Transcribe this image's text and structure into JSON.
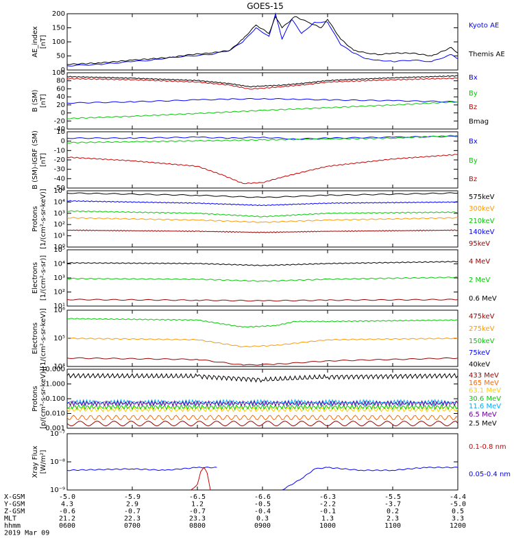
{
  "chart_data": {
    "type": "line",
    "title": "GOES-15",
    "x_ticks": [
      "0600",
      "0700",
      "0800",
      "0900",
      "1000",
      "1100",
      "1200"
    ],
    "xlim": [
      6,
      12
    ],
    "panels": [
      {
        "id": "ae",
        "ylabel": [
          "AE_index",
          "[nT]"
        ],
        "scale": "linear",
        "ylim": [
          0,
          200
        ],
        "tick_labels": [
          "0",
          "50",
          "100",
          "150",
          "200"
        ],
        "series": [
          {
            "name": "Kyoto AE",
            "color": "#0000ff",
            "x": [
              6.0,
              6.5,
              7.0,
              7.3,
              7.6,
              7.9,
              8.2,
              8.5,
              8.7,
              8.9,
              9.1,
              9.2,
              9.3,
              9.45,
              9.6,
              9.8,
              10.0,
              10.2,
              10.4,
              10.6,
              10.8,
              11.0,
              11.3,
              11.6,
              11.9,
              12.0
            ],
            "y": [
              15,
              20,
              30,
              35,
              45,
              50,
              55,
              70,
              100,
              150,
              120,
              200,
              110,
              180,
              130,
              170,
              170,
              90,
              60,
              40,
              35,
              30,
              35,
              30,
              55,
              40
            ]
          },
          {
            "name": "Themis AE",
            "color": "#000000",
            "x": [
              6.0,
              6.5,
              7.0,
              7.3,
              7.6,
              7.9,
              8.2,
              8.5,
              8.7,
              8.9,
              9.1,
              9.2,
              9.3,
              9.5,
              9.7,
              9.9,
              10.0,
              10.2,
              10.4,
              10.6,
              10.8,
              11.0,
              11.3,
              11.6,
              11.9,
              12.0
            ],
            "y": [
              20,
              25,
              35,
              40,
              45,
              55,
              60,
              70,
              110,
              160,
              130,
              190,
              150,
              190,
              170,
              150,
              180,
              110,
              70,
              60,
              55,
              60,
              60,
              50,
              80,
              60
            ]
          }
        ]
      },
      {
        "id": "b",
        "ylabel": [
          "B (SM)",
          "[nT]"
        ],
        "scale": "linear",
        "ylim": [
          -45,
          100
        ],
        "tick_labels": [
          "-40",
          "-20",
          "0",
          "20",
          "40",
          "60",
          "80",
          "100"
        ],
        "series": [
          {
            "name": "Bx",
            "color": "#0000ff",
            "x": [
              6,
              7,
              8,
              8.5,
              9,
              9.5,
              10,
              11,
              12
            ],
            "y": [
              22,
              25,
              30,
              32,
              33,
              32,
              30,
              28,
              25
            ]
          },
          {
            "name": "By",
            "color": "#00cc00",
            "x": [
              6,
              7,
              8,
              9,
              10,
              11,
              12
            ],
            "y": [
              -18,
              -12,
              -5,
              3,
              10,
              17,
              25
            ]
          },
          {
            "name": "Bz",
            "color": "#cc0000",
            "x": [
              6,
              7,
              8,
              8.5,
              8.8,
              9.0,
              9.3,
              9.7,
              10,
              11,
              12
            ],
            "y": [
              85,
              82,
              76,
              68,
              58,
              60,
              64,
              70,
              76,
              82,
              86
            ]
          },
          {
            "name": "Bmag",
            "color": "#000000",
            "x": [
              6,
              7,
              8,
              8.5,
              8.8,
              9.0,
              9.3,
              9.7,
              10,
              11,
              12
            ],
            "y": [
              90,
              86,
              80,
              72,
              64,
              66,
              68,
              74,
              80,
              87,
              92
            ]
          }
        ]
      },
      {
        "id": "dbg",
        "ylabel": [
          "B (SM)-IGRF (SM)",
          "[nT]"
        ],
        "scale": "linear",
        "ylim": [
          -52,
          10
        ],
        "tick_labels": [
          "-50",
          "-40",
          "-30",
          "-20",
          "-10",
          "0",
          "10"
        ],
        "series": [
          {
            "name": "Bx",
            "color": "#0000ff",
            "x": [
              6,
              7,
              8,
              8.5,
              9,
              9.5,
              10,
              11,
              12
            ],
            "y": [
              3,
              3,
              4,
              3,
              4,
              2,
              3,
              4,
              5
            ]
          },
          {
            "name": "By",
            "color": "#00cc00",
            "x": [
              6,
              7,
              8,
              9,
              10,
              11,
              12
            ],
            "y": [
              -2,
              -1,
              0,
              1,
              2,
              3,
              6
            ]
          },
          {
            "name": "Bz",
            "color": "#cc0000",
            "x": [
              6,
              7,
              8,
              8.4,
              8.7,
              9.0,
              9.3,
              9.7,
              10,
              11,
              12
            ],
            "y": [
              -18,
              -22,
              -28,
              -38,
              -47,
              -46,
              -40,
              -33,
              -28,
              -20,
              -15
            ]
          }
        ]
      },
      {
        "id": "protons",
        "ylabel": [
          "Protons",
          "[1/(cm²-s-sr-keV)]"
        ],
        "scale": "log",
        "ylim": [
          0,
          5
        ],
        "tick_labels": [
          "10⁰",
          "10¹",
          "10²",
          "10³",
          "10⁴",
          "10⁵"
        ],
        "series": [
          {
            "name": "575keV",
            "color": "#000000",
            "x": [
              6,
              8,
              9,
              10,
              12
            ],
            "y": [
              4.8,
              4.6,
              4.4,
              4.6,
              4.8
            ]
          },
          {
            "name": "300keV",
            "color": "#ff9900",
            "x": [
              6,
              8,
              9,
              10,
              12
            ],
            "y": [
              2.6,
              2.4,
              2.2,
              2.4,
              2.6
            ]
          },
          {
            "name": "210keV",
            "color": "#00cc00",
            "x": [
              6,
              8,
              9,
              10,
              12
            ],
            "y": [
              3.2,
              3.0,
              2.7,
              3.0,
              3.1
            ]
          },
          {
            "name": "140keV",
            "color": "#0000ff",
            "x": [
              6,
              8,
              9,
              10,
              12
            ],
            "y": [
              4.1,
              3.9,
              3.7,
              3.9,
              4.0
            ]
          },
          {
            "name": "95keV",
            "color": "#990000",
            "x": [
              6,
              8,
              9,
              10,
              12
            ],
            "y": [
              1.5,
              1.4,
              1.3,
              1.4,
              1.5
            ]
          }
        ]
      },
      {
        "id": "electrons1",
        "ylabel": [
          "Electrons",
          "[1/(cm²-s-sr)]"
        ],
        "scale": "log",
        "ylim": [
          0.7,
          5
        ],
        "tick_labels": [
          "10¹",
          "10²",
          "10³",
          "10⁴",
          "10⁵"
        ],
        "series": [
          {
            "name": "4 MeV",
            "color": "#990000",
            "x": [
              6,
              8,
              9,
              10,
              12
            ],
            "y": [
              1.2,
              1.15,
              1.1,
              1.15,
              1.2
            ]
          },
          {
            "name": "2 MeV",
            "color": "#00cc00",
            "x": [
              6,
              8,
              9,
              10,
              12
            ],
            "y": [
              2.8,
              2.75,
              2.6,
              2.75,
              2.9
            ]
          },
          {
            "name": "0.6 MeV",
            "color": "#000000",
            "x": [
              6,
              8,
              9,
              10,
              12
            ],
            "y": [
              4.0,
              3.95,
              3.8,
              3.95,
              4.1
            ]
          }
        ]
      },
      {
        "id": "electrons2",
        "ylabel": [
          "Electrons",
          "[1/(cm²-s-sr-keV)]"
        ],
        "scale": "log",
        "ylim": [
          4,
          6
        ],
        "tick_labels": [
          "10⁴",
          "10⁵",
          "10⁶"
        ],
        "series": [
          {
            "name": "475keV",
            "color": "#990000",
            "x": [
              6,
              8,
              8.7,
              9.2,
              10,
              12
            ],
            "y": [
              4.3,
              4.25,
              4.05,
              4.08,
              4.2,
              4.3
            ]
          },
          {
            "name": "275keV",
            "color": "#ff9900",
            "x": [
              6,
              8,
              8.7,
              9.2,
              10,
              12
            ],
            "y": [
              5.0,
              4.95,
              4.7,
              4.75,
              4.95,
              5.0
            ]
          },
          {
            "name": "150keV",
            "color": "#00cc00",
            "x": [
              6,
              8,
              8.7,
              9.2,
              9.5,
              10,
              12
            ],
            "y": [
              5.7,
              5.65,
              5.4,
              5.45,
              5.6,
              5.6,
              5.65
            ]
          },
          {
            "name": "75keV",
            "color": "#0000ff",
            "x": [],
            "y": []
          },
          {
            "name": "40keV",
            "color": "#000000",
            "x": [],
            "y": []
          }
        ]
      },
      {
        "id": "protons_hi",
        "ylabel": [
          "Protons",
          "[p/(cm²-s-sr-keV)]"
        ],
        "scale": "log",
        "ylim": [
          -3.2,
          1.8
        ],
        "tick_labels": [
          "0.001",
          "0.010",
          "0.100",
          "1.000",
          "10.000"
        ],
        "series": [
          {
            "name": "433 MeV",
            "color": "#990000",
            "x": [
              6,
              12
            ],
            "y": [
              -2.8,
              -2.8
            ]
          },
          {
            "name": "165 MeV",
            "color": "#ff6600",
            "x": [
              6,
              12
            ],
            "y": [
              -2.3,
              -2.3
            ]
          },
          {
            "name": "63.1 MeV",
            "color": "#ffcc00",
            "x": [
              6,
              12
            ],
            "y": [
              -1.6,
              -1.6
            ]
          },
          {
            "name": "30.6 MeV",
            "color": "#00cc00",
            "x": [
              6,
              12
            ],
            "y": [
              -1.4,
              -1.4
            ]
          },
          {
            "name": "11.6 MeV",
            "color": "#00aaff",
            "x": [
              6,
              12
            ],
            "y": [
              -1.0,
              -1.0
            ]
          },
          {
            "name": "6.5 MeV",
            "color": "#660099",
            "x": [
              6,
              12
            ],
            "y": [
              -1.1,
              -1.1
            ]
          },
          {
            "name": "2.5 MeV",
            "color": "#000000",
            "x": [
              6,
              8,
              9,
              10,
              12
            ],
            "y": [
              1.25,
              1.2,
              0.9,
              1.15,
              1.25
            ]
          }
        ]
      },
      {
        "id": "xray",
        "ylabel": [
          "Xray Flux",
          "[W/m²]"
        ],
        "scale": "log",
        "ylim": [
          -9,
          -7
        ],
        "tick_labels": [
          "10⁻⁹",
          "10⁻⁸",
          "10⁻⁷"
        ],
        "series": [
          {
            "name": "0.1-0.8 nm",
            "color": "#cc0000",
            "x": [
              7.9,
              8.0,
              8.05,
              8.1,
              8.15,
              8.2
            ],
            "y": [
              -9,
              -8.8,
              -8.35,
              -8.2,
              -8.4,
              -9
            ]
          },
          {
            "name": "0.05-0.4 nm",
            "color": "#0000ff",
            "x": [
              6.0,
              7.0,
              7.5,
              8.0,
              8.3,
              8.31,
              9.3,
              9.6,
              9.8,
              10.0,
              10.5,
              11.0,
              11.5,
              12.0
            ],
            "y": [
              -8.3,
              -8.25,
              -8.3,
              -8.2,
              -8.2,
              null,
              -9,
              -8.6,
              -8.25,
              -8.2,
              -8.3,
              -8.3,
              -8.2,
              -8.2
            ]
          }
        ]
      }
    ]
  },
  "footer": {
    "rows": [
      {
        "label": "X-GSM",
        "values": [
          "-5.0",
          "-5.9",
          "-6.5",
          "-6.6",
          "-6.3",
          "-5.5",
          "-4.4"
        ]
      },
      {
        "label": "Y-GSM",
        "values": [
          "4.3",
          "2.9",
          "1.2",
          "-0.5",
          "-2.2",
          "-3.7",
          "-5.0"
        ]
      },
      {
        "label": "Z-GSM",
        "values": [
          "-0.6",
          "-0.7",
          "-0.7",
          "-0.4",
          "-0.1",
          "0.2",
          "0.5"
        ]
      },
      {
        "label": "MLT",
        "values": [
          "21.2",
          "22.3",
          "23.3",
          "0.3",
          "1.3",
          "2.3",
          "3.3"
        ]
      },
      {
        "label": "hhmm",
        "values": [
          "0600",
          "0700",
          "0800",
          "0900",
          "1000",
          "1100",
          "1200"
        ]
      }
    ],
    "date": "2019 Mar 09"
  }
}
